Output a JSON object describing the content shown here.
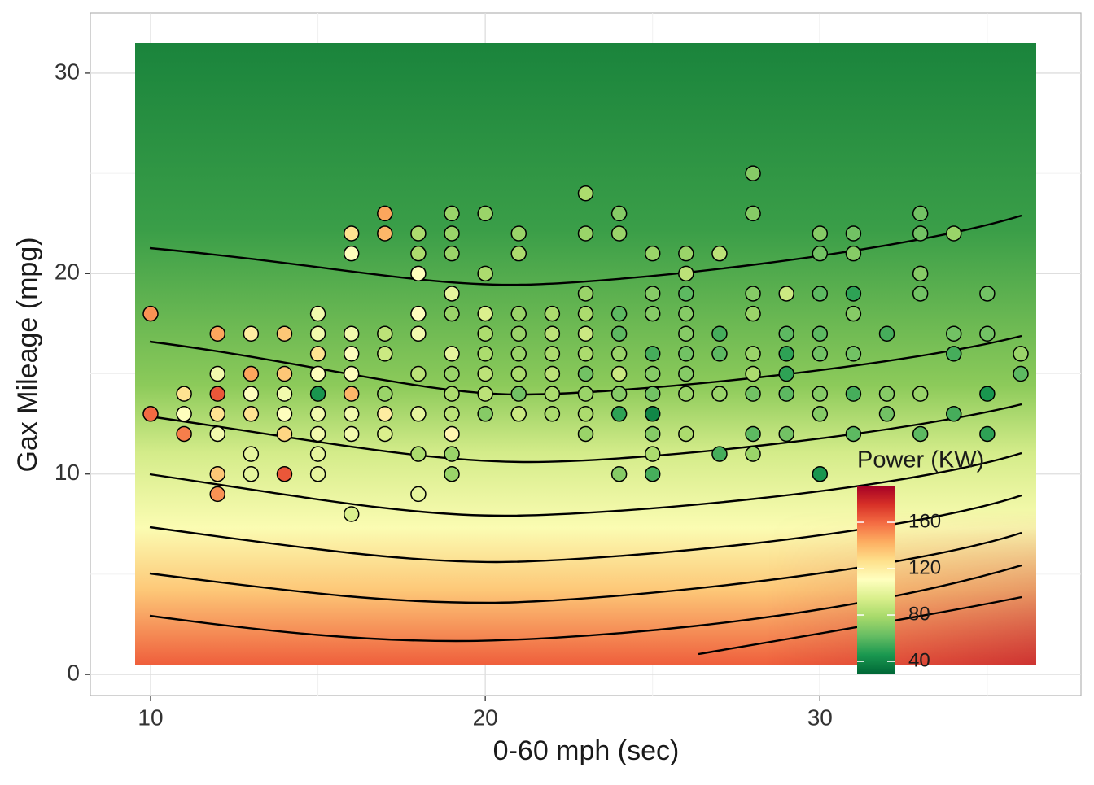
{
  "chart_data": {
    "type": "scatter",
    "x_label": "0-60 mph (sec)",
    "y_label": "Gax Mileage (mpg)",
    "legend_title": "Power (KW)",
    "xlim": [
      8.2,
      37.8
    ],
    "ylim": [
      -1.05,
      33
    ],
    "xticks": [
      10,
      20,
      30
    ],
    "yticks": [
      0,
      10,
      20,
      30
    ],
    "x_minor_ticks": [
      15,
      25,
      35
    ],
    "y_minor_ticks": [
      5,
      15,
      25
    ],
    "grid": true,
    "colorlim": [
      29.5,
      191.6
    ],
    "colorticks": [
      40,
      80,
      120,
      160
    ],
    "color_stops": [
      "#006837",
      "#1a9850",
      "#66bd63",
      "#a6d96a",
      "#d9ef8b",
      "#ffffbf",
      "#fee08b",
      "#fdae61",
      "#f46d43",
      "#d73027",
      "#a50026"
    ],
    "points": [
      {
        "x": 10,
        "y": 18,
        "power": 150
      },
      {
        "x": 10,
        "y": 13,
        "power": 160
      },
      {
        "x": 11,
        "y": 14,
        "power": 125
      },
      {
        "x": 11,
        "y": 13,
        "power": 110
      },
      {
        "x": 11,
        "y": 12,
        "power": 155
      },
      {
        "x": 12,
        "y": 17,
        "power": 145
      },
      {
        "x": 12,
        "y": 15,
        "power": 105
      },
      {
        "x": 12,
        "y": 14,
        "power": 165
      },
      {
        "x": 12,
        "y": 13,
        "power": 125
      },
      {
        "x": 12,
        "y": 12,
        "power": 105
      },
      {
        "x": 12,
        "y": 10,
        "power": 135
      },
      {
        "x": 12,
        "y": 9,
        "power": 150
      },
      {
        "x": 13,
        "y": 17,
        "power": 120
      },
      {
        "x": 13,
        "y": 15,
        "power": 145
      },
      {
        "x": 13,
        "y": 14,
        "power": 110
      },
      {
        "x": 13,
        "y": 13,
        "power": 125
      },
      {
        "x": 13,
        "y": 11,
        "power": 100
      },
      {
        "x": 13,
        "y": 10,
        "power": 100
      },
      {
        "x": 14,
        "y": 17,
        "power": 135
      },
      {
        "x": 14,
        "y": 15,
        "power": 135
      },
      {
        "x": 14,
        "y": 14,
        "power": 105
      },
      {
        "x": 14,
        "y": 13,
        "power": 110
      },
      {
        "x": 14,
        "y": 12,
        "power": 130
      },
      {
        "x": 14,
        "y": 10,
        "power": 165
      },
      {
        "x": 15,
        "y": 18,
        "power": 105
      },
      {
        "x": 15,
        "y": 17,
        "power": 105
      },
      {
        "x": 15,
        "y": 16,
        "power": 125
      },
      {
        "x": 15,
        "y": 15,
        "power": 110
      },
      {
        "x": 15,
        "y": 14,
        "power": 45
      },
      {
        "x": 15,
        "y": 13,
        "power": 105
      },
      {
        "x": 15,
        "y": 12,
        "power": 105
      },
      {
        "x": 15,
        "y": 11,
        "power": 100
      },
      {
        "x": 15,
        "y": 10,
        "power": 100
      },
      {
        "x": 16,
        "y": 22,
        "power": 125
      },
      {
        "x": 16,
        "y": 21,
        "power": 110
      },
      {
        "x": 16,
        "y": 17,
        "power": 105
      },
      {
        "x": 16,
        "y": 16,
        "power": 110
      },
      {
        "x": 16,
        "y": 15,
        "power": 110
      },
      {
        "x": 16,
        "y": 14,
        "power": 140
      },
      {
        "x": 16,
        "y": 13,
        "power": 105
      },
      {
        "x": 16,
        "y": 12,
        "power": 105
      },
      {
        "x": 16,
        "y": 8,
        "power": 95
      },
      {
        "x": 17,
        "y": 23,
        "power": 145
      },
      {
        "x": 17,
        "y": 22,
        "power": 140
      },
      {
        "x": 17,
        "y": 17,
        "power": 85
      },
      {
        "x": 17,
        "y": 16,
        "power": 90
      },
      {
        "x": 17,
        "y": 14,
        "power": 75
      },
      {
        "x": 17,
        "y": 13,
        "power": 120
      },
      {
        "x": 17,
        "y": 12,
        "power": 95
      },
      {
        "x": 18,
        "y": 22,
        "power": 80
      },
      {
        "x": 18,
        "y": 21,
        "power": 80
      },
      {
        "x": 18,
        "y": 20,
        "power": 110
      },
      {
        "x": 18,
        "y": 18,
        "power": 110
      },
      {
        "x": 18,
        "y": 17,
        "power": 105
      },
      {
        "x": 18,
        "y": 15,
        "power": 85
      },
      {
        "x": 18,
        "y": 13,
        "power": 100
      },
      {
        "x": 18,
        "y": 11,
        "power": 80
      },
      {
        "x": 18,
        "y": 9,
        "power": 100
      },
      {
        "x": 19,
        "y": 23,
        "power": 75
      },
      {
        "x": 19,
        "y": 22,
        "power": 75
      },
      {
        "x": 19,
        "y": 21,
        "power": 75
      },
      {
        "x": 19,
        "y": 19,
        "power": 100
      },
      {
        "x": 19,
        "y": 18,
        "power": 75
      },
      {
        "x": 19,
        "y": 16,
        "power": 100
      },
      {
        "x": 19,
        "y": 15,
        "power": 75
      },
      {
        "x": 19,
        "y": 14,
        "power": 80
      },
      {
        "x": 19,
        "y": 13,
        "power": 85
      },
      {
        "x": 19,
        "y": 12,
        "power": 115
      },
      {
        "x": 19,
        "y": 11,
        "power": 75
      },
      {
        "x": 19,
        "y": 10,
        "power": 75
      },
      {
        "x": 20,
        "y": 23,
        "power": 75
      },
      {
        "x": 20,
        "y": 20,
        "power": 80
      },
      {
        "x": 20,
        "y": 18,
        "power": 95
      },
      {
        "x": 20,
        "y": 17,
        "power": 80
      },
      {
        "x": 20,
        "y": 16,
        "power": 80
      },
      {
        "x": 20,
        "y": 15,
        "power": 85
      },
      {
        "x": 20,
        "y": 14,
        "power": 85
      },
      {
        "x": 20,
        "y": 13,
        "power": 70
      },
      {
        "x": 21,
        "y": 22,
        "power": 75
      },
      {
        "x": 21,
        "y": 21,
        "power": 80
      },
      {
        "x": 21,
        "y": 18,
        "power": 75
      },
      {
        "x": 21,
        "y": 17,
        "power": 75
      },
      {
        "x": 21,
        "y": 16,
        "power": 75
      },
      {
        "x": 21,
        "y": 15,
        "power": 80
      },
      {
        "x": 21,
        "y": 14,
        "power": 65
      },
      {
        "x": 21,
        "y": 13,
        "power": 90
      },
      {
        "x": 22,
        "y": 18,
        "power": 80
      },
      {
        "x": 22,
        "y": 17,
        "power": 85
      },
      {
        "x": 22,
        "y": 16,
        "power": 80
      },
      {
        "x": 22,
        "y": 15,
        "power": 85
      },
      {
        "x": 22,
        "y": 14,
        "power": 80
      },
      {
        "x": 22,
        "y": 13,
        "power": 80
      },
      {
        "x": 23,
        "y": 24,
        "power": 80
      },
      {
        "x": 23,
        "y": 22,
        "power": 75
      },
      {
        "x": 23,
        "y": 19,
        "power": 75
      },
      {
        "x": 23,
        "y": 18,
        "power": 80
      },
      {
        "x": 23,
        "y": 17,
        "power": 90
      },
      {
        "x": 23,
        "y": 16,
        "power": 80
      },
      {
        "x": 23,
        "y": 15,
        "power": 65
      },
      {
        "x": 23,
        "y": 14,
        "power": 75
      },
      {
        "x": 23,
        "y": 13,
        "power": 80
      },
      {
        "x": 23,
        "y": 12,
        "power": 75
      },
      {
        "x": 24,
        "y": 23,
        "power": 70
      },
      {
        "x": 24,
        "y": 22,
        "power": 75
      },
      {
        "x": 24,
        "y": 18,
        "power": 60
      },
      {
        "x": 24,
        "y": 17,
        "power": 60
      },
      {
        "x": 24,
        "y": 16,
        "power": 75
      },
      {
        "x": 24,
        "y": 15,
        "power": 90
      },
      {
        "x": 24,
        "y": 14,
        "power": 70
      },
      {
        "x": 24,
        "y": 13,
        "power": 50
      },
      {
        "x": 24,
        "y": 10,
        "power": 70
      },
      {
        "x": 25,
        "y": 21,
        "power": 75
      },
      {
        "x": 25,
        "y": 19,
        "power": 70
      },
      {
        "x": 25,
        "y": 18,
        "power": 70
      },
      {
        "x": 25,
        "y": 16,
        "power": 55
      },
      {
        "x": 25,
        "y": 15,
        "power": 70
      },
      {
        "x": 25,
        "y": 14,
        "power": 65
      },
      {
        "x": 25,
        "y": 13,
        "power": 40
      },
      {
        "x": 25,
        "y": 12,
        "power": 70
      },
      {
        "x": 25,
        "y": 11,
        "power": 80
      },
      {
        "x": 25,
        "y": 10,
        "power": 55
      },
      {
        "x": 26,
        "y": 21,
        "power": 75
      },
      {
        "x": 26,
        "y": 20,
        "power": 85
      },
      {
        "x": 26,
        "y": 19,
        "power": 60
      },
      {
        "x": 26,
        "y": 18,
        "power": 70
      },
      {
        "x": 26,
        "y": 17,
        "power": 70
      },
      {
        "x": 26,
        "y": 16,
        "power": 65
      },
      {
        "x": 26,
        "y": 15,
        "power": 70
      },
      {
        "x": 26,
        "y": 14,
        "power": 75
      },
      {
        "x": 26,
        "y": 12,
        "power": 80
      },
      {
        "x": 27,
        "y": 21,
        "power": 85
      },
      {
        "x": 27,
        "y": 17,
        "power": 55
      },
      {
        "x": 27,
        "y": 16,
        "power": 60
      },
      {
        "x": 27,
        "y": 14,
        "power": 75
      },
      {
        "x": 27,
        "y": 11,
        "power": 55
      },
      {
        "x": 28,
        "y": 25,
        "power": 70
      },
      {
        "x": 28,
        "y": 23,
        "power": 70
      },
      {
        "x": 28,
        "y": 19,
        "power": 70
      },
      {
        "x": 28,
        "y": 18,
        "power": 75
      },
      {
        "x": 28,
        "y": 16,
        "power": 75
      },
      {
        "x": 28,
        "y": 15,
        "power": 80
      },
      {
        "x": 28,
        "y": 14,
        "power": 65
      },
      {
        "x": 28,
        "y": 12,
        "power": 60
      },
      {
        "x": 28,
        "y": 11,
        "power": 75
      },
      {
        "x": 29,
        "y": 19,
        "power": 90
      },
      {
        "x": 29,
        "y": 17,
        "power": 60
      },
      {
        "x": 29,
        "y": 16,
        "power": 50
      },
      {
        "x": 29,
        "y": 15,
        "power": 50
      },
      {
        "x": 29,
        "y": 14,
        "power": 60
      },
      {
        "x": 29,
        "y": 12,
        "power": 65
      },
      {
        "x": 30,
        "y": 22,
        "power": 70
      },
      {
        "x": 30,
        "y": 21,
        "power": 65
      },
      {
        "x": 30,
        "y": 19,
        "power": 60
      },
      {
        "x": 30,
        "y": 17,
        "power": 60
      },
      {
        "x": 30,
        "y": 16,
        "power": 65
      },
      {
        "x": 30,
        "y": 14,
        "power": 70
      },
      {
        "x": 30,
        "y": 13,
        "power": 70
      },
      {
        "x": 30,
        "y": 10,
        "power": 45
      },
      {
        "x": 31,
        "y": 22,
        "power": 65
      },
      {
        "x": 31,
        "y": 21,
        "power": 70
      },
      {
        "x": 31,
        "y": 19,
        "power": 50
      },
      {
        "x": 31,
        "y": 18,
        "power": 70
      },
      {
        "x": 31,
        "y": 16,
        "power": 65
      },
      {
        "x": 31,
        "y": 14,
        "power": 55
      },
      {
        "x": 31,
        "y": 12,
        "power": 60
      },
      {
        "x": 32,
        "y": 17,
        "power": 55
      },
      {
        "x": 32,
        "y": 14,
        "power": 70
      },
      {
        "x": 32,
        "y": 13,
        "power": 65
      },
      {
        "x": 33,
        "y": 23,
        "power": 65
      },
      {
        "x": 33,
        "y": 22,
        "power": 65
      },
      {
        "x": 33,
        "y": 20,
        "power": 70
      },
      {
        "x": 33,
        "y": 19,
        "power": 65
      },
      {
        "x": 33,
        "y": 14,
        "power": 75
      },
      {
        "x": 33,
        "y": 12,
        "power": 60
      },
      {
        "x": 34,
        "y": 22,
        "power": 75
      },
      {
        "x": 34,
        "y": 17,
        "power": 65
      },
      {
        "x": 34,
        "y": 16,
        "power": 55
      },
      {
        "x": 34,
        "y": 13,
        "power": 55
      },
      {
        "x": 35,
        "y": 19,
        "power": 65
      },
      {
        "x": 35,
        "y": 17,
        "power": 65
      },
      {
        "x": 35,
        "y": 14,
        "power": 45
      },
      {
        "x": 35,
        "y": 12,
        "power": 50
      },
      {
        "x": 36,
        "y": 16,
        "power": 75
      },
      {
        "x": 36,
        "y": 15,
        "power": 60
      }
    ]
  }
}
